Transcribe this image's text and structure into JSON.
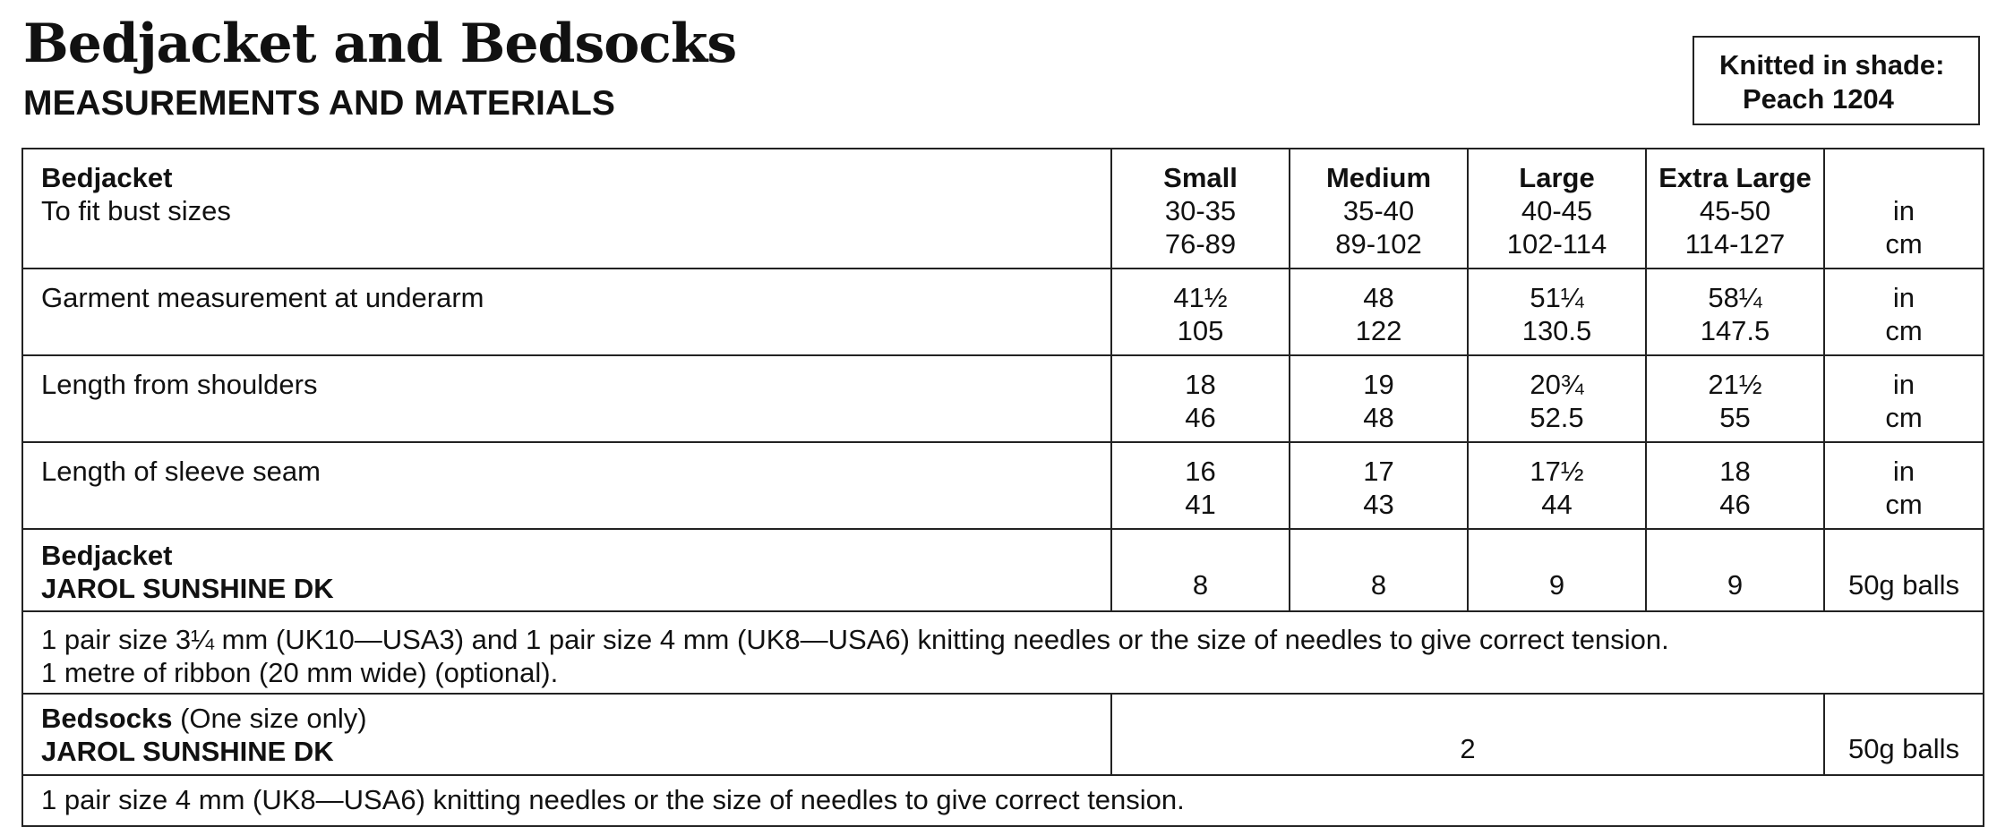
{
  "header": {
    "title": "Bedjacket and Bedsocks",
    "subtitle": "MEASUREMENTS AND MATERIALS"
  },
  "shade": {
    "line1": "Knitted in shade:",
    "line2": "Peach 1204"
  },
  "table": {
    "bedjacket_title": "Bedjacket",
    "bust_label": "To fit bust sizes",
    "sizes": [
      "Small",
      "Medium",
      "Large",
      "Extra Large"
    ],
    "bust_in": [
      "30-35",
      "35-40",
      "40-45",
      "45-50"
    ],
    "bust_cm": [
      "76-89",
      "89-102",
      "102-114",
      "114-127"
    ],
    "unit_in": "in",
    "unit_cm": "cm",
    "measurements": [
      {
        "label": "Garment measurement at underarm",
        "in": [
          "41½",
          "48",
          "51¼",
          "58¼"
        ],
        "cm": [
          "105",
          "122",
          "130.5",
          "147.5"
        ]
      },
      {
        "label": "Length from shoulders",
        "in": [
          "18",
          "19",
          "20¾",
          "21½"
        ],
        "cm": [
          "46",
          "48",
          "52.5",
          "55"
        ]
      },
      {
        "label": "Length of sleeve seam",
        "in": [
          "16",
          "17",
          "17½",
          "18"
        ],
        "cm": [
          "41",
          "43",
          "44",
          "46"
        ]
      }
    ],
    "bedjacket_yarn": {
      "title": "Bedjacket",
      "yarn": "JAROL SUNSHINE DK",
      "balls": [
        "8",
        "8",
        "9",
        "9"
      ],
      "unit": "50g balls"
    },
    "bedjacket_notes": [
      "1 pair size 3¼ mm (UK10—USA3) and 1 pair size 4 mm (UK8—USA6) knitting needles or the size of needles to give correct tension.",
      "1 metre of ribbon (20 mm wide) (optional)."
    ],
    "bedsocks": {
      "title": "Bedsocks",
      "title_suffix": " (One size only)",
      "yarn": "JAROL SUNSHINE DK",
      "balls": "2",
      "unit": "50g balls"
    },
    "bedsocks_note": "1 pair size 4 mm (UK8—USA6) knitting needles or the size of needles to give correct tension."
  }
}
